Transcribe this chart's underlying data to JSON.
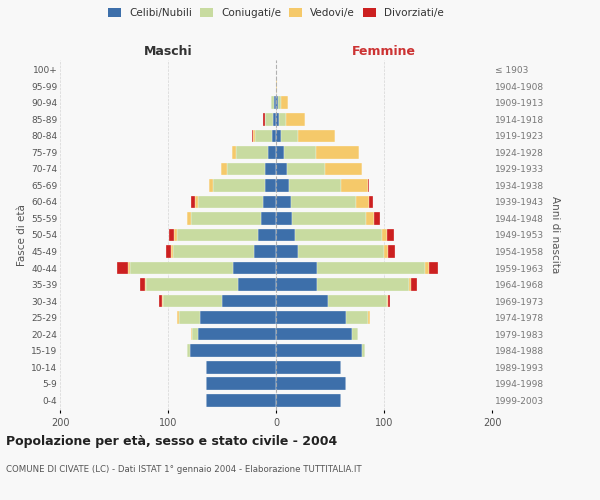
{
  "age_groups": [
    "0-4",
    "5-9",
    "10-14",
    "15-19",
    "20-24",
    "25-29",
    "30-34",
    "35-39",
    "40-44",
    "45-49",
    "50-54",
    "55-59",
    "60-64",
    "65-69",
    "70-74",
    "75-79",
    "80-84",
    "85-89",
    "90-94",
    "95-99",
    "100+"
  ],
  "birth_years": [
    "1999-2003",
    "1994-1998",
    "1989-1993",
    "1984-1988",
    "1979-1983",
    "1974-1978",
    "1969-1973",
    "1964-1968",
    "1959-1963",
    "1954-1958",
    "1949-1953",
    "1944-1948",
    "1939-1943",
    "1934-1938",
    "1929-1933",
    "1924-1928",
    "1919-1923",
    "1914-1918",
    "1909-1913",
    "1904-1908",
    "≤ 1903"
  ],
  "males": {
    "celibi": [
      65,
      65,
      65,
      80,
      72,
      70,
      50,
      35,
      40,
      20,
      17,
      14,
      12,
      10,
      10,
      7,
      4,
      3,
      2,
      0,
      0
    ],
    "coniugati": [
      0,
      0,
      0,
      2,
      6,
      20,
      55,
      85,
      95,
      75,
      75,
      65,
      60,
      48,
      35,
      30,
      15,
      7,
      3,
      0,
      0
    ],
    "vedovi": [
      0,
      0,
      0,
      0,
      1,
      2,
      1,
      1,
      2,
      2,
      2,
      3,
      3,
      4,
      6,
      4,
      2,
      0,
      0,
      0,
      0
    ],
    "divorziati": [
      0,
      0,
      0,
      0,
      0,
      0,
      2,
      5,
      10,
      5,
      5,
      0,
      4,
      0,
      0,
      0,
      1,
      2,
      0,
      0,
      0
    ]
  },
  "females": {
    "nubili": [
      60,
      65,
      60,
      80,
      70,
      65,
      48,
      38,
      38,
      20,
      18,
      15,
      14,
      12,
      10,
      7,
      5,
      3,
      2,
      0,
      0
    ],
    "coniugate": [
      0,
      0,
      0,
      2,
      6,
      20,
      55,
      85,
      100,
      80,
      80,
      68,
      60,
      48,
      35,
      30,
      15,
      6,
      3,
      0,
      0
    ],
    "vedove": [
      0,
      0,
      0,
      0,
      0,
      2,
      1,
      2,
      4,
      4,
      5,
      8,
      12,
      25,
      35,
      40,
      35,
      18,
      6,
      1,
      0
    ],
    "divorziate": [
      0,
      0,
      0,
      0,
      0,
      0,
      2,
      6,
      8,
      6,
      6,
      5,
      4,
      1,
      0,
      0,
      0,
      0,
      0,
      0,
      0
    ]
  },
  "colors": {
    "celibi_nubili": "#3d6faa",
    "coniugati_e": "#c8dba0",
    "vedovi_e": "#f5c96a",
    "divorziati_e": "#cc2020"
  },
  "title": "Popolazione per età, sesso e stato civile - 2004",
  "subtitle": "COMUNE DI CIVATE (LC) - Dati ISTAT 1° gennaio 2004 - Elaborazione TUTTITALIA.IT",
  "ylabel_left": "Fasce di età",
  "ylabel_right": "Anni di nascita",
  "xlabel_left": "Maschi",
  "xlabel_right": "Femmine",
  "xlim": 200,
  "bg_color": "#f8f8f8",
  "legend_labels": [
    "Celibi/Nubili",
    "Coniugati/e",
    "Vedovi/e",
    "Divorziati/e"
  ]
}
